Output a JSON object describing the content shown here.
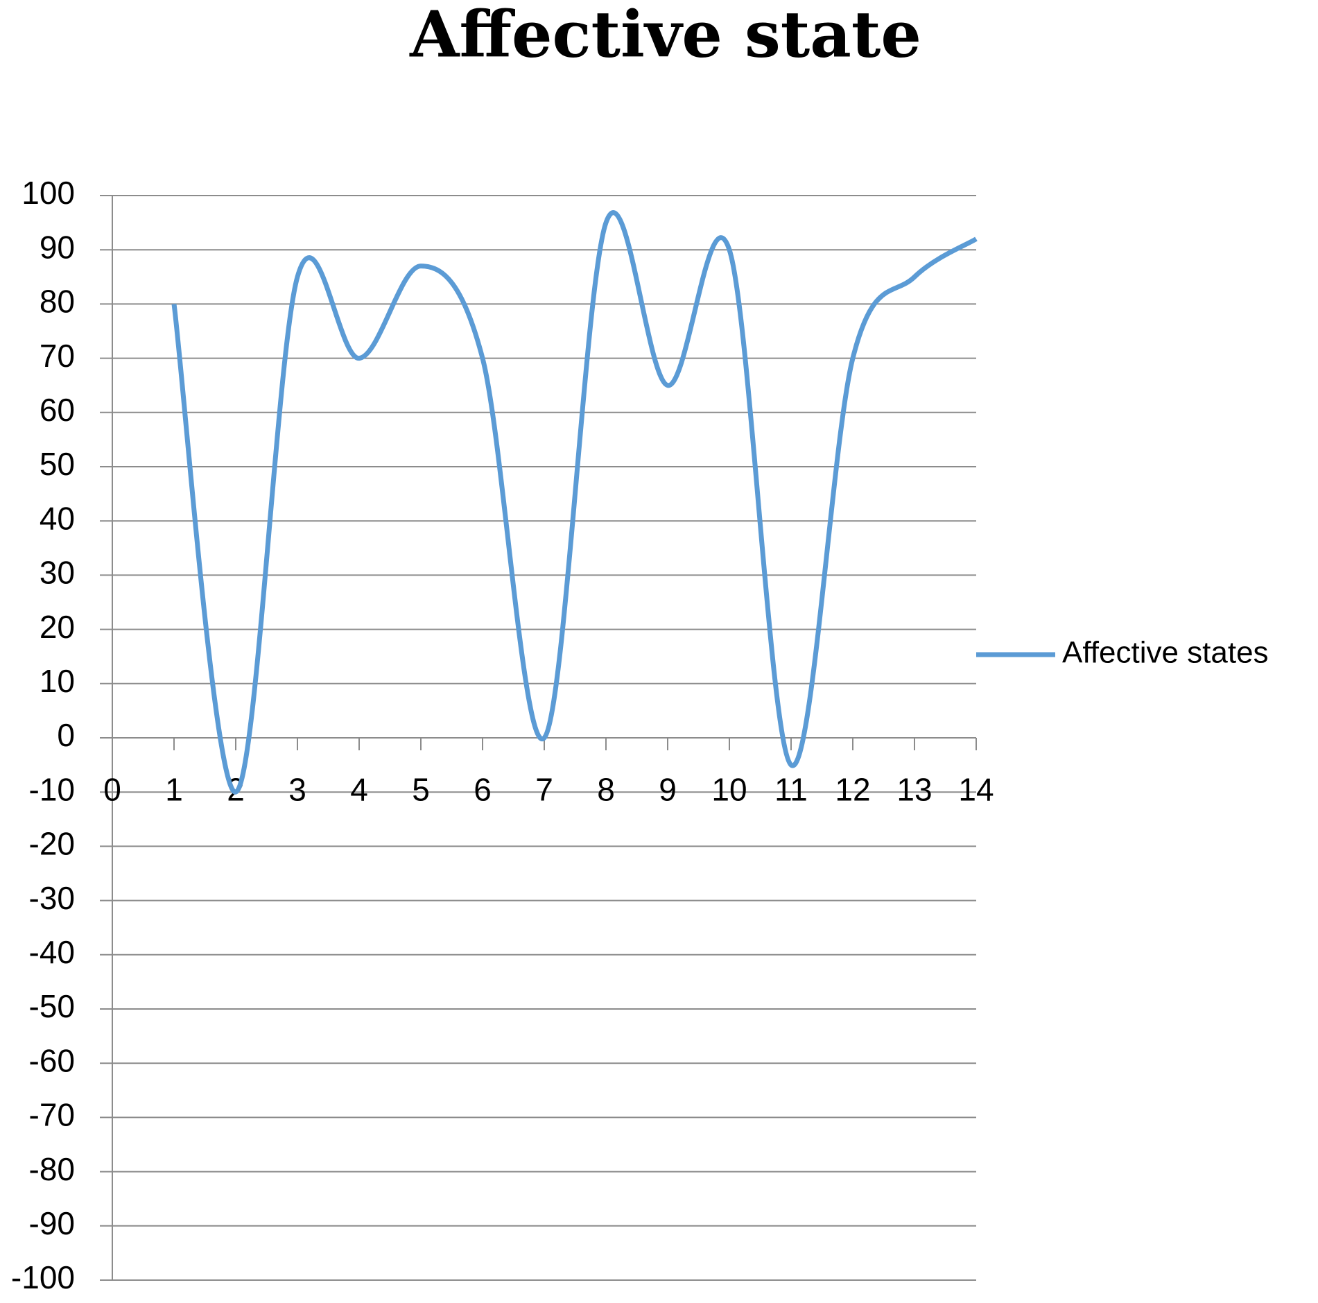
{
  "chart_data": {
    "type": "line",
    "title": "Affective state",
    "x": [
      1,
      2,
      3,
      4,
      5,
      6,
      7,
      8,
      9,
      10,
      11,
      12,
      13,
      14
    ],
    "series": [
      {
        "name": "Affective states",
        "color": "#5b9bd5",
        "values": [
          80,
          -10,
          85,
          70,
          87,
          70,
          0,
          95,
          65,
          90,
          -5,
          70,
          85,
          92
        ]
      }
    ],
    "smooth": true,
    "xlim": [
      0,
      14
    ],
    "xticks": [
      0,
      1,
      2,
      3,
      4,
      5,
      6,
      7,
      8,
      9,
      10,
      11,
      12,
      13,
      14
    ],
    "ylim": [
      -100,
      100
    ],
    "yticks": [
      -100,
      -90,
      -80,
      -70,
      -60,
      -50,
      -40,
      -30,
      -20,
      -10,
      0,
      10,
      20,
      30,
      40,
      50,
      60,
      70,
      80,
      90,
      100
    ],
    "grid": true,
    "legend": "right"
  }
}
